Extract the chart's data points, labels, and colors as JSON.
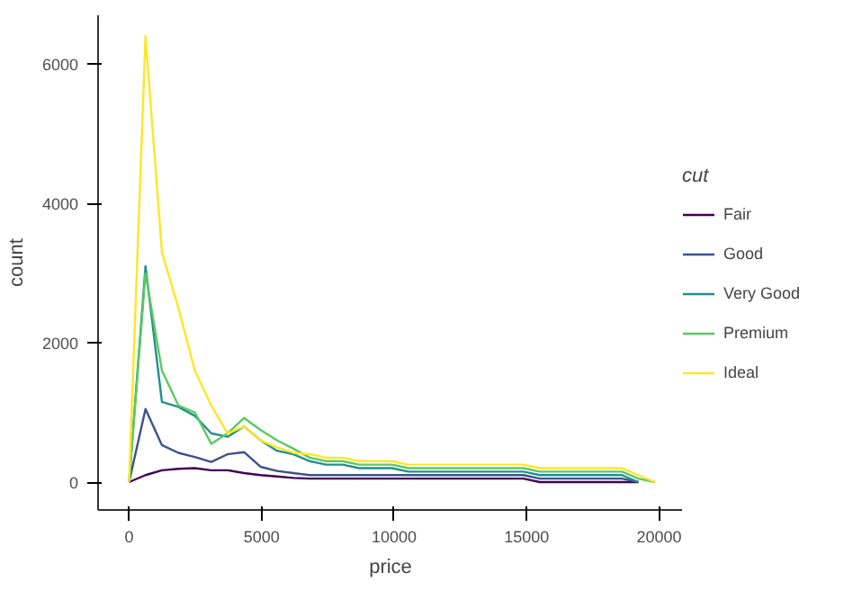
{
  "chart_data": {
    "type": "line",
    "xlabel": "price",
    "ylabel": "count",
    "legend_title": "cut",
    "legend": "right",
    "grid": false,
    "marker": "none",
    "line_style": "solid",
    "x": [
      0,
      620,
      1240,
      1860,
      2480,
      3100,
      3720,
      4340,
      4960,
      5580,
      6200,
      6820,
      7440,
      8060,
      8680,
      9300,
      9920,
      10540,
      11160,
      11780,
      12400,
      13020,
      13640,
      14260,
      14880,
      15500,
      16120,
      16740,
      17360,
      17980,
      18600,
      19220,
      19840
    ],
    "xlim": [
      -1170,
      20900
    ],
    "ylim": [
      -400,
      6700
    ],
    "xticks": [
      0,
      5000,
      10000,
      15000,
      20000
    ],
    "yticks": [
      0,
      2000,
      4000,
      6000
    ],
    "series": [
      {
        "name": "Fair",
        "color": "#440154",
        "values": [
          0,
          100,
          170,
          190,
          200,
          170,
          170,
          130,
          100,
          80,
          60,
          50,
          50,
          50,
          50,
          50,
          50,
          50,
          50,
          50,
          50,
          50,
          50,
          50,
          50,
          0,
          0,
          0,
          0,
          0,
          0,
          0,
          null
        ]
      },
      {
        "name": "Good",
        "color": "#3b528b",
        "values": [
          0,
          1050,
          530,
          420,
          360,
          290,
          400,
          430,
          220,
          160,
          130,
          100,
          100,
          100,
          100,
          100,
          100,
          100,
          100,
          100,
          100,
          100,
          100,
          100,
          100,
          50,
          50,
          50,
          50,
          50,
          50,
          0,
          null
        ]
      },
      {
        "name": "Very Good",
        "color": "#21908c",
        "values": [
          0,
          3100,
          1150,
          1080,
          950,
          700,
          650,
          800,
          600,
          450,
          400,
          300,
          250,
          250,
          200,
          200,
          200,
          150,
          150,
          150,
          150,
          150,
          150,
          150,
          150,
          100,
          100,
          100,
          100,
          100,
          100,
          0,
          null
        ]
      },
      {
        "name": "Premium",
        "color": "#5dc863",
        "values": [
          0,
          3000,
          1600,
          1100,
          1000,
          550,
          700,
          920,
          750,
          600,
          480,
          350,
          300,
          300,
          250,
          250,
          250,
          200,
          200,
          200,
          200,
          200,
          200,
          200,
          200,
          150,
          150,
          150,
          150,
          150,
          150,
          50,
          0
        ]
      },
      {
        "name": "Ideal",
        "color": "#fde725",
        "values": [
          0,
          6400,
          3300,
          2500,
          1600,
          1100,
          700,
          800,
          600,
          500,
          420,
          400,
          350,
          350,
          300,
          300,
          300,
          250,
          250,
          250,
          250,
          250,
          250,
          250,
          250,
          200,
          200,
          200,
          200,
          200,
          200,
          100,
          0
        ]
      }
    ]
  }
}
